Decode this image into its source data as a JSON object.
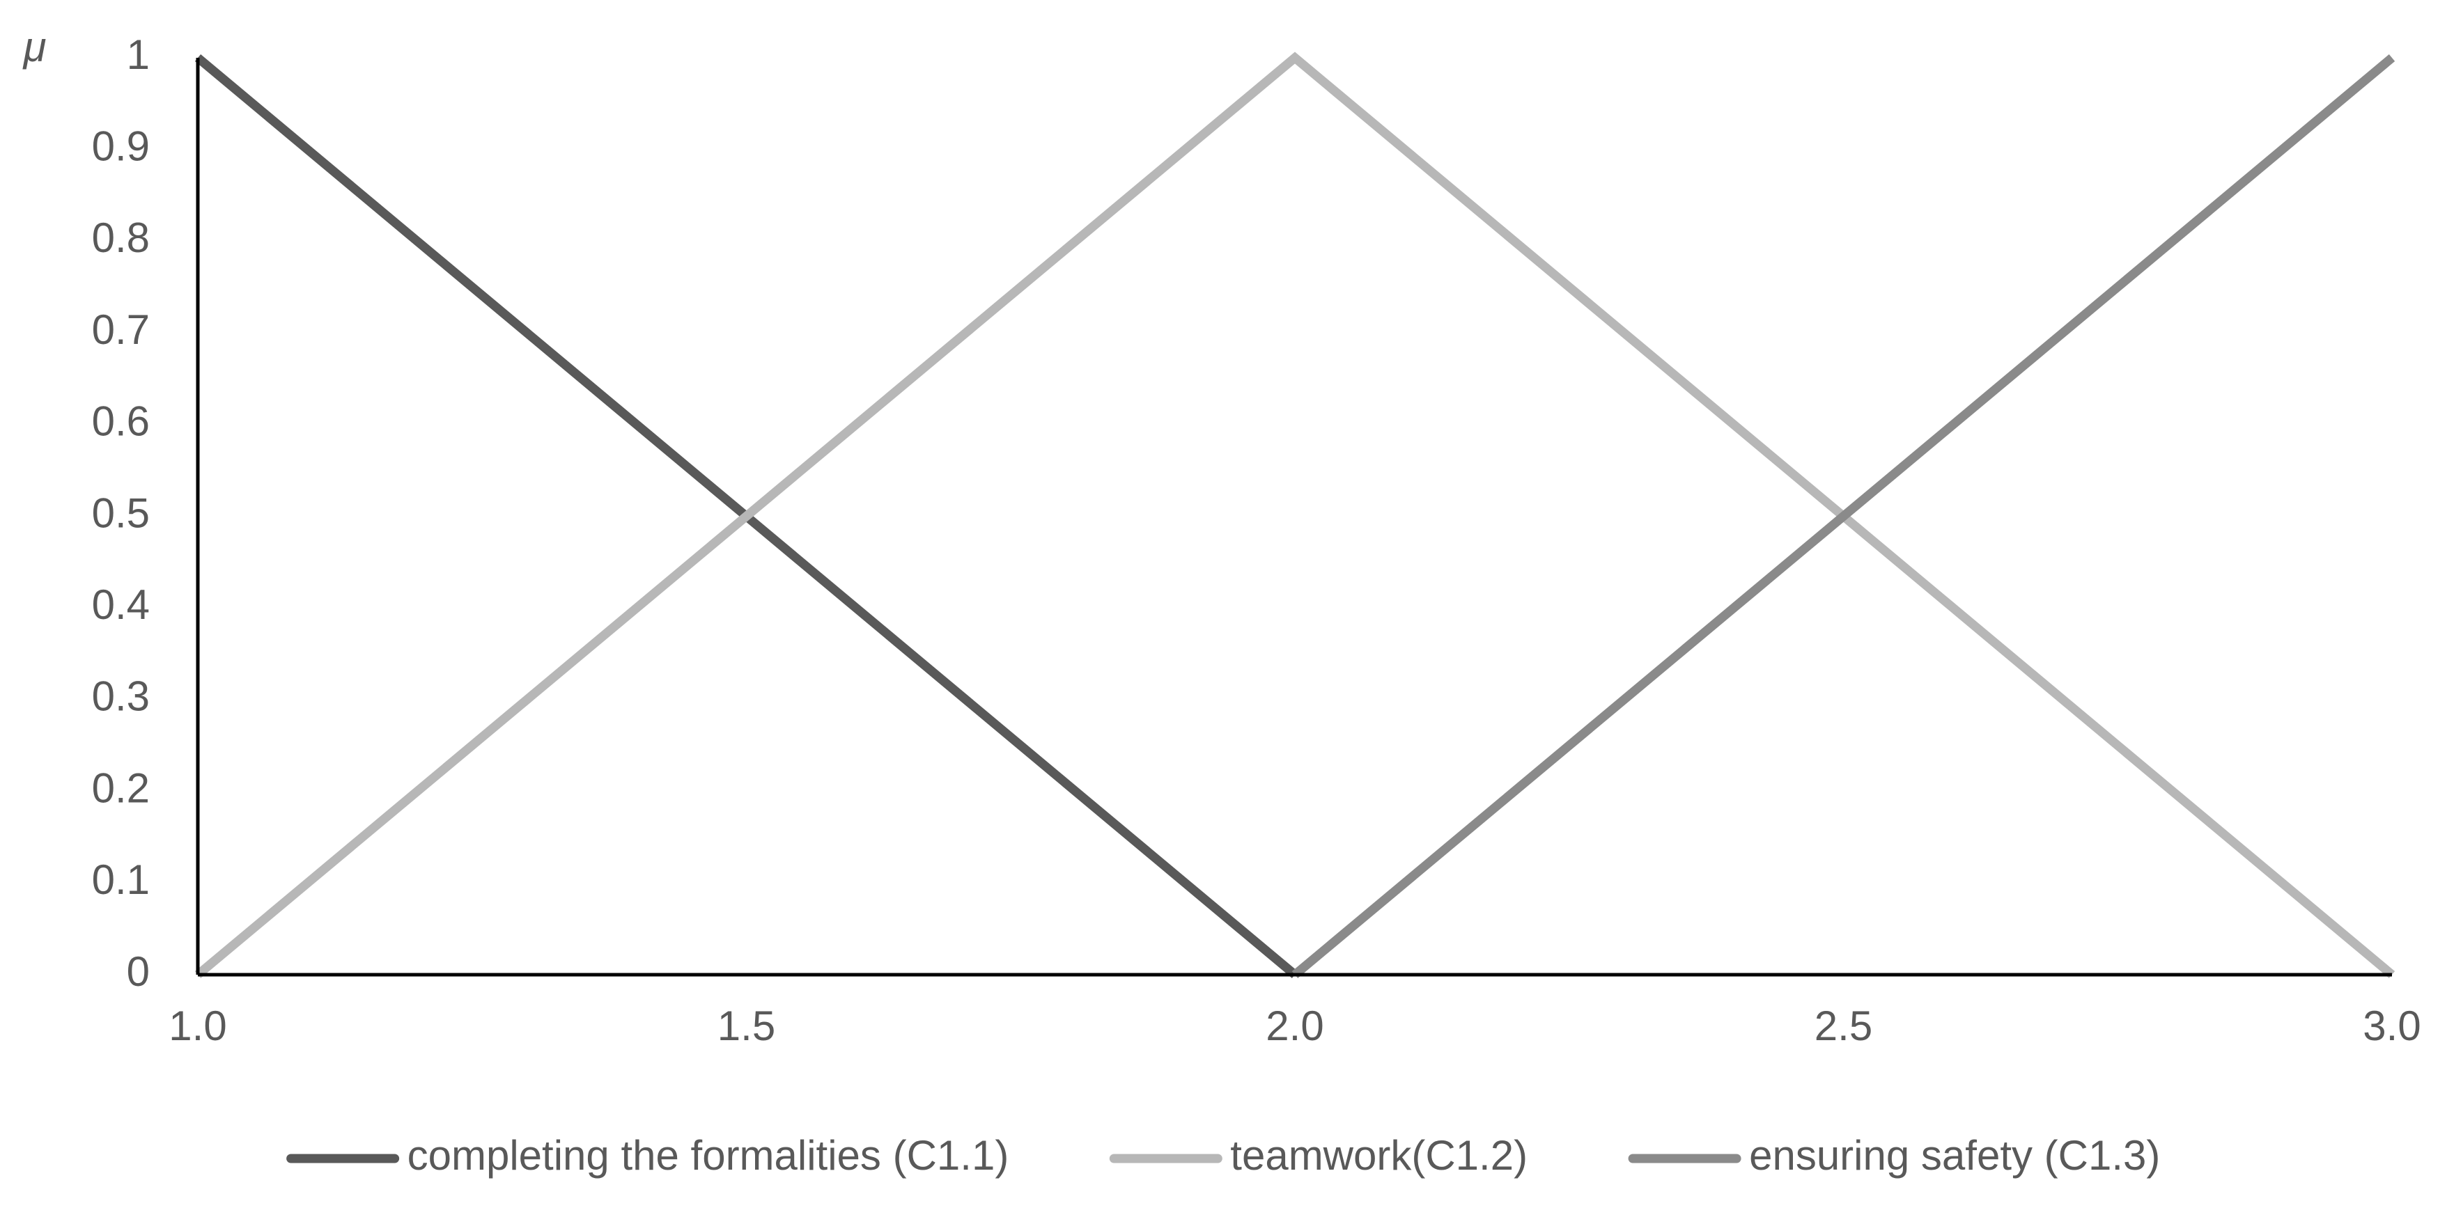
{
  "chart_data": {
    "type": "line",
    "y_label": "μ",
    "x": [
      1,
      2,
      3
    ],
    "series": [
      {
        "name": "completing the formalities (C1.1)",
        "color": "#595959",
        "values": [
          1,
          0,
          null
        ]
      },
      {
        "name": "teamwork(C1.2)",
        "color": "#b7b7b7",
        "values": [
          0,
          1,
          0
        ]
      },
      {
        "name": "ensuring safety (C1.3)",
        "color": "#8a8a8a",
        "values": [
          null,
          0,
          1
        ]
      }
    ],
    "xlim": [
      1,
      3
    ],
    "xticks": [
      {
        "value": 1,
        "label": "1.0"
      },
      1.5,
      {
        "value": 2,
        "label": "2.0"
      },
      2.5,
      {
        "value": 3,
        "label": "3.0"
      }
    ],
    "ylim": [
      0,
      1
    ],
    "yticks": [
      0,
      0.1,
      0.2,
      0.3,
      0.4,
      0.5,
      0.6,
      0.7,
      0.8,
      0.9,
      1
    ],
    "grid": false,
    "legend": "bottom"
  }
}
